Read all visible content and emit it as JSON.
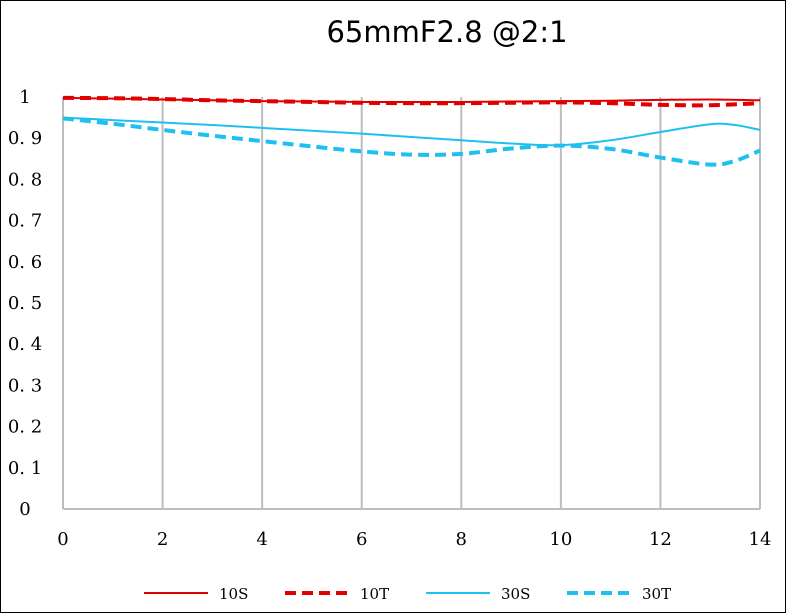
{
  "chart_data": {
    "type": "line",
    "title": "65mmF2.8 @2:1",
    "xlabel": "",
    "ylabel": "",
    "xlim": [
      0,
      14
    ],
    "ylim": [
      0,
      1
    ],
    "x_ticks": [
      0,
      2,
      4,
      6,
      8,
      10,
      12,
      14
    ],
    "y_ticks": [
      0,
      0.1,
      0.2,
      0.3,
      0.4,
      0.5,
      0.6,
      0.7,
      0.8,
      0.9,
      1
    ],
    "y_tick_labels": [
      "0",
      "0. 1",
      "0. 2",
      "0. 3",
      "0. 4",
      "0. 5",
      "0. 6",
      "0. 7",
      "0. 8",
      "0. 9",
      "1"
    ],
    "grid": "vertical",
    "legend_position": "bottom",
    "series": [
      {
        "name": "10S",
        "color": "#e00000",
        "style": "solid",
        "x": [
          0,
          1,
          2,
          3,
          4,
          5,
          6,
          7,
          8,
          9,
          10,
          11,
          12,
          13,
          14
        ],
        "y": [
          0.998,
          0.996,
          0.994,
          0.992,
          0.99,
          0.989,
          0.988,
          0.988,
          0.988,
          0.989,
          0.99,
          0.991,
          0.993,
          0.994,
          0.992
        ]
      },
      {
        "name": "10T",
        "color": "#e00000",
        "style": "dashed",
        "x": [
          0,
          1,
          2,
          3,
          4,
          5,
          6,
          7,
          8,
          9,
          10,
          11,
          12,
          13,
          14
        ],
        "y": [
          0.998,
          0.997,
          0.995,
          0.992,
          0.99,
          0.988,
          0.986,
          0.985,
          0.985,
          0.986,
          0.987,
          0.985,
          0.981,
          0.98,
          0.985
        ]
      },
      {
        "name": "30S",
        "color": "#1ec0f0",
        "style": "solid",
        "x": [
          0,
          1,
          2,
          3,
          4,
          5,
          6,
          7,
          8,
          9,
          10,
          11,
          12,
          13,
          13.5,
          14
        ],
        "y": [
          0.95,
          0.944,
          0.938,
          0.932,
          0.925,
          0.918,
          0.911,
          0.903,
          0.895,
          0.887,
          0.883,
          0.895,
          0.915,
          0.934,
          0.932,
          0.92
        ]
      },
      {
        "name": "30T",
        "color": "#1ec0f0",
        "style": "dashed",
        "x": [
          0,
          1,
          2,
          3,
          4,
          5,
          6,
          7,
          8,
          9,
          10,
          11,
          12,
          13,
          13.5,
          14
        ],
        "y": [
          0.948,
          0.935,
          0.92,
          0.906,
          0.893,
          0.88,
          0.868,
          0.86,
          0.862,
          0.875,
          0.882,
          0.874,
          0.853,
          0.836,
          0.845,
          0.87
        ]
      }
    ]
  }
}
